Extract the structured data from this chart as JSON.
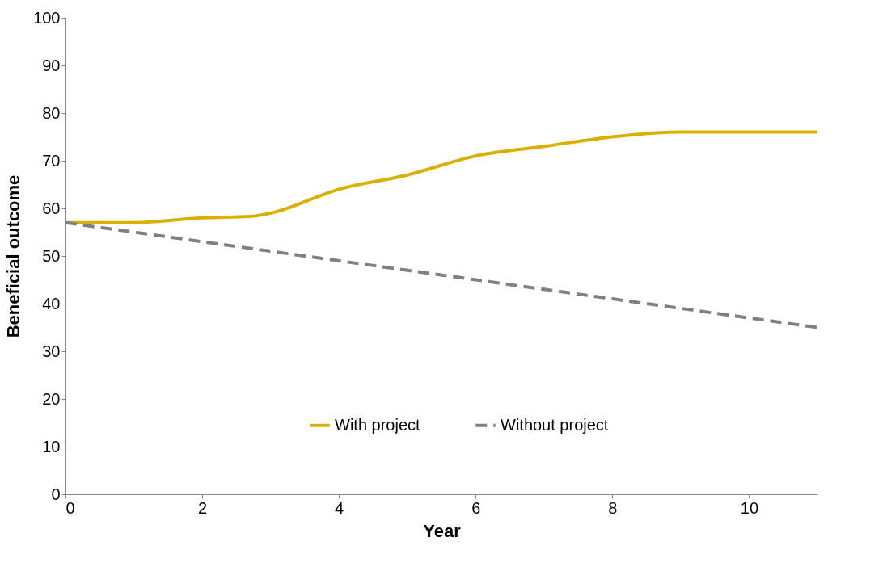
{
  "chart_data": {
    "type": "line",
    "xlabel": "Year",
    "ylabel": "Beneficial outcome",
    "x": [
      0,
      1,
      2,
      2.7,
      3,
      4,
      5,
      6,
      7,
      8,
      9,
      10,
      11
    ],
    "xlim": [
      0,
      11
    ],
    "xticks": [
      0,
      2,
      4,
      6,
      8,
      10
    ],
    "ylim": [
      0,
      100
    ],
    "yticks": [
      0,
      10,
      20,
      30,
      40,
      50,
      60,
      70,
      80,
      90,
      100
    ],
    "series": [
      {
        "name": "With project",
        "color": "#d9b000",
        "line_style": "solid",
        "values": [
          57,
          57,
          58,
          58.3,
          59,
          64,
          67,
          71,
          73,
          75,
          76,
          76,
          76
        ]
      },
      {
        "name": "Without project",
        "color": "#808080",
        "line_style": "dashed",
        "x": [
          0,
          1,
          2,
          3,
          4,
          5,
          6,
          7,
          8,
          9,
          10,
          11
        ],
        "values": [
          57,
          55,
          53,
          51,
          49,
          47,
          45,
          43,
          41,
          39,
          37,
          35
        ]
      }
    ],
    "legend": "bottom",
    "grid": false,
    "marker": "none"
  }
}
